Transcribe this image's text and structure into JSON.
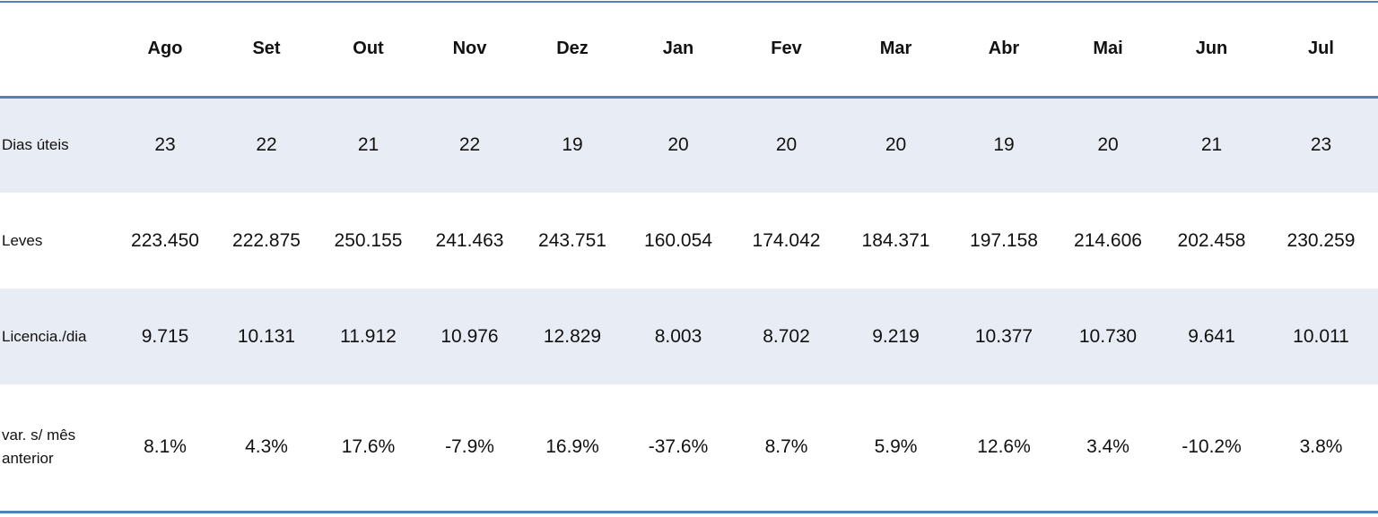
{
  "table": {
    "columns": [
      "",
      "Ago",
      "Set",
      "Out",
      "Nov",
      "Dez",
      "Jan",
      "Fev",
      "Mar",
      "Abr",
      "Mai",
      "Jun",
      "Jul"
    ],
    "rows": [
      {
        "label": "Dias úteis",
        "values": [
          "23",
          "22",
          "21",
          "22",
          "19",
          "20",
          "20",
          "20",
          "19",
          "20",
          "21",
          "23"
        ]
      },
      {
        "label": "Leves",
        "values": [
          "223.450",
          "222.875",
          "250.155",
          "241.463",
          "243.751",
          "160.054",
          "174.042",
          "184.371",
          "197.158",
          "214.606",
          "202.458",
          "230.259"
        ]
      },
      {
        "label": "Licencia./dia",
        "values": [
          "9.715",
          "10.131",
          "11.912",
          "10.976",
          "12.829",
          "8.003",
          "8.702",
          "9.219",
          "10.377",
          "10.730",
          "9.641",
          "10.011"
        ]
      },
      {
        "label": "var. s/ mês anterior",
        "values": [
          "8.1%",
          "4.3%",
          "17.6%",
          "-7.9%",
          "16.9%",
          "-37.6%",
          "8.7%",
          "5.9%",
          "12.6%",
          "3.4%",
          "-10.2%",
          "3.8%"
        ]
      }
    ]
  },
  "colors": {
    "rule": "#4f81bd",
    "band": "#e8ecf4"
  }
}
